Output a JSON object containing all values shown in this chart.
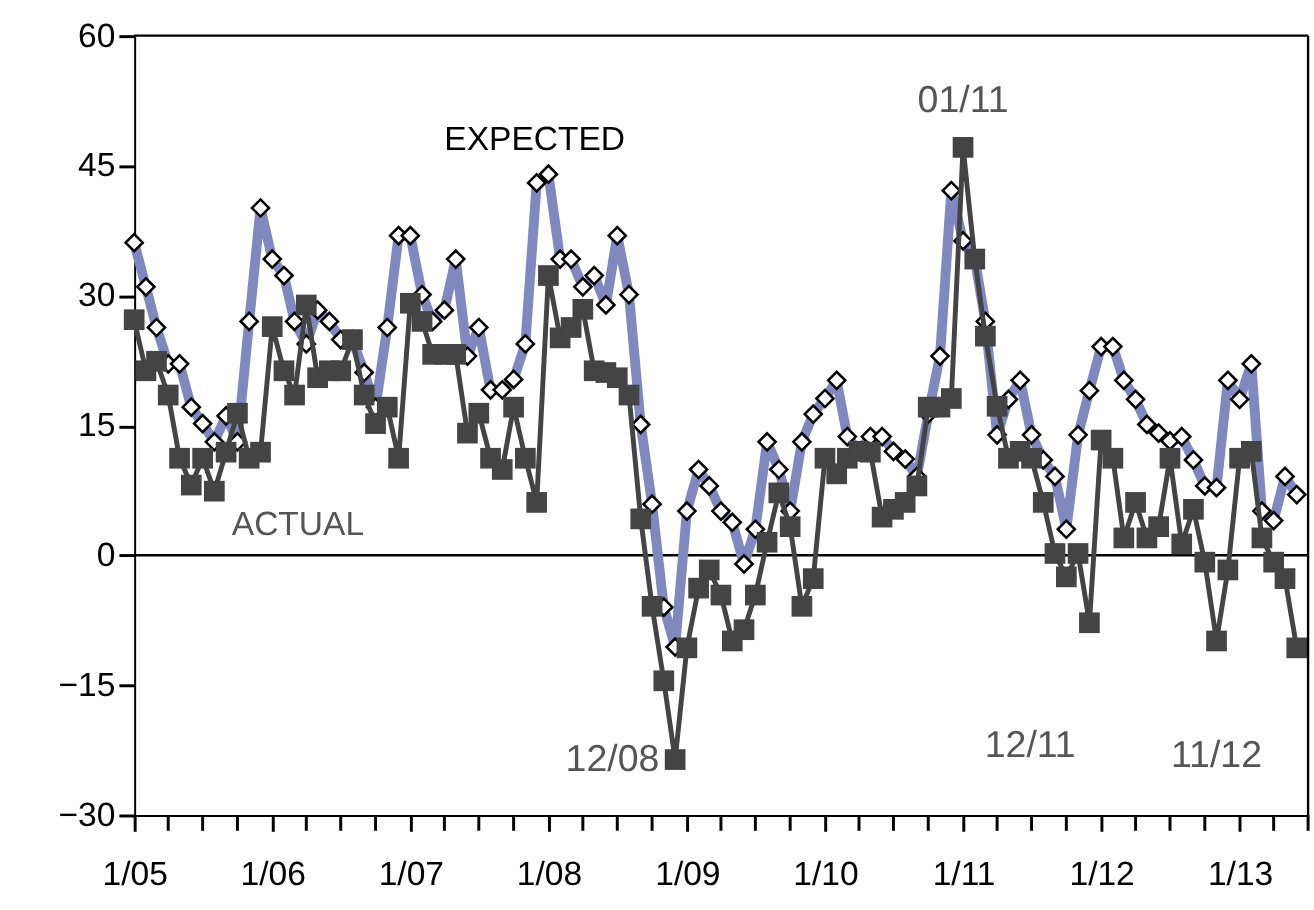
{
  "chart_data": {
    "type": "line",
    "x": [
      "2005-01",
      "2005-02",
      "2005-03",
      "2005-04",
      "2005-05",
      "2005-06",
      "2005-07",
      "2005-08",
      "2005-09",
      "2005-10",
      "2005-11",
      "2005-12",
      "2006-01",
      "2006-02",
      "2006-03",
      "2006-04",
      "2006-05",
      "2006-06",
      "2006-07",
      "2006-08",
      "2006-09",
      "2006-10",
      "2006-11",
      "2006-12",
      "2007-01",
      "2007-02",
      "2007-03",
      "2007-04",
      "2007-05",
      "2007-06",
      "2007-07",
      "2007-08",
      "2007-09",
      "2007-10",
      "2007-11",
      "2007-12",
      "2008-01",
      "2008-02",
      "2008-03",
      "2008-04",
      "2008-05",
      "2008-06",
      "2008-07",
      "2008-08",
      "2008-09",
      "2008-10",
      "2008-11",
      "2008-12",
      "2009-01",
      "2009-02",
      "2009-03",
      "2009-04",
      "2009-05",
      "2009-06",
      "2009-07",
      "2009-08",
      "2009-09",
      "2009-10",
      "2009-11",
      "2009-12",
      "2010-01",
      "2010-02",
      "2010-03",
      "2010-04",
      "2010-05",
      "2010-06",
      "2010-07",
      "2010-08",
      "2010-09",
      "2010-10",
      "2010-11",
      "2010-12",
      "2011-01",
      "2011-02",
      "2011-03",
      "2011-04",
      "2011-05",
      "2011-06",
      "2011-07",
      "2011-08",
      "2011-09",
      "2011-10",
      "2011-11",
      "2011-12",
      "2012-01",
      "2012-02",
      "2012-03",
      "2012-04",
      "2012-05",
      "2012-06",
      "2012-07",
      "2012-08",
      "2012-09",
      "2012-10",
      "2012-11",
      "2012-12",
      "2013-01",
      "2013-02",
      "2013-03",
      "2013-04",
      "2013-05",
      "2013-06"
    ],
    "series": [
      {
        "name": "EXPECTED",
        "color": "#8088c0",
        "marker": "diamond",
        "values": [
          36.1,
          31.0,
          26.3,
          22.1,
          22.1,
          17.1,
          15.2,
          13.1,
          16.1,
          13.1,
          27.0,
          40.1,
          34.2,
          32.3,
          27.0,
          24.4,
          28.3,
          27.0,
          24.9,
          24.9,
          21.1,
          17.1,
          26.3,
          36.9,
          36.9,
          30.1,
          27.0,
          28.3,
          34.2,
          23.0,
          26.3,
          19.1,
          19.1,
          20.3,
          24.4,
          43.0,
          44.0,
          34.2,
          34.2,
          31.0,
          32.3,
          28.9,
          36.9,
          30.1,
          15.1,
          5.9,
          -6.0,
          -10.6,
          5.1,
          9.9,
          8.0,
          5.1,
          3.8,
          -1.0,
          3.0,
          13.1,
          9.9,
          5.1,
          13.1,
          16.3,
          18.1,
          20.2,
          13.7,
          12.0,
          13.7,
          13.7,
          12.0,
          11.1,
          9.1,
          16.3,
          23.0,
          42.1,
          36.3,
          34.2,
          27.0,
          13.9,
          18.0,
          20.2,
          13.9,
          11.0,
          9.1,
          3.0,
          13.9,
          19.0,
          24.1,
          24.1,
          20.2,
          18.0,
          15.1,
          14.1,
          13.2,
          13.7,
          11.0,
          8.0,
          7.8,
          20.2,
          18.0,
          22.1,
          5.1,
          4.0,
          9.1,
          7.0
        ]
      },
      {
        "name": "ACTUAL",
        "color": "#444444",
        "marker": "square",
        "values": [
          27.2,
          21.3,
          22.4,
          18.5,
          11.2,
          8.1,
          11.2,
          7.4,
          11.9,
          16.4,
          11.2,
          11.9,
          26.4,
          21.3,
          18.5,
          28.9,
          20.5,
          21.3,
          21.3,
          24.9,
          18.5,
          15.2,
          17.1,
          11.2,
          29.1,
          27.0,
          23.2,
          23.2,
          23.2,
          14.1,
          16.4,
          11.2,
          9.9,
          17.1,
          11.2,
          6.1,
          32.3,
          25.1,
          26.3,
          28.4,
          21.3,
          21.1,
          20.5,
          18.5,
          4.2,
          -5.9,
          -14.5,
          -23.6,
          -10.7,
          -3.8,
          -1.7,
          -4.6,
          -9.9,
          -8.6,
          -4.6,
          1.5,
          7.2,
          3.3,
          -5.9,
          -2.7,
          11.2,
          9.4,
          11.2,
          12.0,
          11.9,
          4.4,
          5.3,
          6.1,
          8.0,
          17.1,
          17.1,
          18.1,
          47.1,
          34.2,
          25.3,
          17.2,
          11.2,
          12.0,
          11.2,
          6.1,
          0.2,
          -2.5,
          0.2,
          -7.8,
          13.3,
          11.2,
          2.0,
          6.1,
          2.0,
          3.3,
          11.2,
          1.3,
          5.3,
          -0.8,
          -9.9,
          -1.7,
          11.2,
          12.0,
          2.0,
          -0.8,
          -2.7,
          -10.7
        ]
      }
    ],
    "xlim": [
      "2005-01",
      "2013-07"
    ],
    "xticks": [
      {
        "value": "2005-01",
        "label": "1/05"
      },
      {
        "value": "2005-04",
        "label": null
      },
      {
        "value": "2005-07",
        "label": null
      },
      {
        "value": "2005-10",
        "label": null
      },
      {
        "value": "2006-01",
        "label": "1/06"
      },
      {
        "value": "2006-04",
        "label": null
      },
      {
        "value": "2006-07",
        "label": null
      },
      {
        "value": "2006-10",
        "label": null
      },
      {
        "value": "2007-01",
        "label": "1/07"
      },
      {
        "value": "2007-04",
        "label": null
      },
      {
        "value": "2007-07",
        "label": null
      },
      {
        "value": "2007-10",
        "label": null
      },
      {
        "value": "2008-01",
        "label": "1/08"
      },
      {
        "value": "2008-04",
        "label": null
      },
      {
        "value": "2008-07",
        "label": null
      },
      {
        "value": "2008-10",
        "label": null
      },
      {
        "value": "2009-01",
        "label": "1/09"
      },
      {
        "value": "2009-04",
        "label": null
      },
      {
        "value": "2009-07",
        "label": null
      },
      {
        "value": "2009-10",
        "label": null
      },
      {
        "value": "2010-01",
        "label": "1/10"
      },
      {
        "value": "2010-04",
        "label": null
      },
      {
        "value": "2010-07",
        "label": null
      },
      {
        "value": "2010-10",
        "label": null
      },
      {
        "value": "2011-01",
        "label": "1/11"
      },
      {
        "value": "2011-04",
        "label": null
      },
      {
        "value": "2011-07",
        "label": null
      },
      {
        "value": "2011-10",
        "label": null
      },
      {
        "value": "2012-01",
        "label": "1/12"
      },
      {
        "value": "2012-04",
        "label": null
      },
      {
        "value": "2012-07",
        "label": null
      },
      {
        "value": "2012-10",
        "label": null
      },
      {
        "value": "2013-01",
        "label": "1/13"
      },
      {
        "value": "2013-04",
        "label": null
      },
      {
        "value": "2013-07",
        "label": null
      }
    ],
    "ylim": [
      -30,
      60
    ],
    "yticks": [
      -30,
      -15,
      0,
      15,
      30,
      45,
      60
    ],
    "grid": false,
    "legend": false,
    "line_style": "solid",
    "ref_lines": [
      {
        "axis": "y",
        "value": 0,
        "color": "#000000"
      }
    ],
    "annotations": [
      {
        "text": "01/11",
        "x": "2011-01",
        "y": 47.1
      },
      {
        "text": "12/08",
        "x": "2008-12",
        "y": -23.6
      },
      {
        "text": "12/11",
        "x": "2011-12",
        "y": -7.8
      },
      {
        "text": "11/12",
        "x": "2012-11",
        "y": -9.9
      }
    ]
  }
}
